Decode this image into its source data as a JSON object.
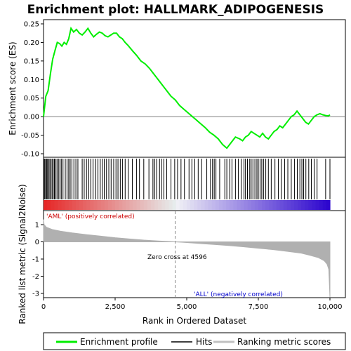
{
  "title": "Enrichment plot: HALLMARK_ADIPOGENESIS",
  "colors": {
    "enrichment": "#00ee00",
    "hits": "#000000",
    "metric_fill": "#b0b0b0",
    "pos_label": "#cc0000",
    "neg_label": "#0000cc",
    "zero_cross_line": "#888888"
  },
  "chart_data": [
    {
      "type": "line",
      "name": "enrichment-profile",
      "ylabel": "Enrichment score (ES)",
      "ylim": [
        -0.1,
        0.25
      ],
      "yticks": [
        "0.25",
        "0.20",
        "0.15",
        "0.10",
        "0.05",
        "0.00",
        "-0.05",
        "-0.10"
      ],
      "ytick_values": [
        0.25,
        0.2,
        0.15,
        0.1,
        0.05,
        0.0,
        -0.05,
        -0.1
      ],
      "xlim": [
        0,
        10100
      ],
      "x": [
        0,
        80,
        160,
        240,
        320,
        400,
        480,
        560,
        640,
        720,
        800,
        880,
        960,
        1050,
        1150,
        1250,
        1350,
        1450,
        1550,
        1650,
        1750,
        1850,
        1950,
        2050,
        2150,
        2250,
        2350,
        2450,
        2550,
        2650,
        2750,
        2850,
        2950,
        3100,
        3250,
        3400,
        3550,
        3700,
        3850,
        4000,
        4150,
        4300,
        4450,
        4600,
        4750,
        4900,
        5050,
        5200,
        5350,
        5500,
        5650,
        5800,
        5950,
        6100,
        6250,
        6400,
        6550,
        6700,
        6850,
        6950,
        7050,
        7150,
        7250,
        7350,
        7450,
        7550,
        7650,
        7750,
        7850,
        7950,
        8050,
        8150,
        8250,
        8350,
        8450,
        8550,
        8650,
        8750,
        8850,
        8950,
        9050,
        9150,
        9250,
        9350,
        9450,
        9550,
        9650,
        9750,
        9850,
        9950,
        10000
      ],
      "y": [
        0.0,
        0.055,
        0.07,
        0.115,
        0.155,
        0.178,
        0.2,
        0.197,
        0.19,
        0.2,
        0.195,
        0.21,
        0.238,
        0.228,
        0.235,
        0.225,
        0.22,
        0.228,
        0.238,
        0.225,
        0.215,
        0.222,
        0.228,
        0.225,
        0.218,
        0.215,
        0.22,
        0.225,
        0.225,
        0.215,
        0.21,
        0.2,
        0.192,
        0.178,
        0.165,
        0.15,
        0.142,
        0.13,
        0.115,
        0.1,
        0.085,
        0.07,
        0.055,
        0.045,
        0.03,
        0.02,
        0.01,
        0.0,
        -0.01,
        -0.02,
        -0.03,
        -0.042,
        -0.05,
        -0.06,
        -0.075,
        -0.085,
        -0.07,
        -0.055,
        -0.06,
        -0.065,
        -0.055,
        -0.05,
        -0.04,
        -0.045,
        -0.05,
        -0.055,
        -0.045,
        -0.055,
        -0.06,
        -0.05,
        -0.04,
        -0.035,
        -0.025,
        -0.03,
        -0.02,
        -0.01,
        0.0,
        0.005,
        0.015,
        0.005,
        -0.005,
        -0.015,
        -0.02,
        -0.01,
        0.0,
        0.005,
        0.008,
        0.005,
        0.003,
        0.002,
        0.005
      ]
    },
    {
      "type": "scatter",
      "name": "hits",
      "x": [
        10,
        40,
        70,
        110,
        140,
        180,
        220,
        260,
        300,
        340,
        380,
        420,
        470,
        520,
        570,
        620,
        680,
        760,
        820,
        880,
        930,
        990,
        1060,
        1130,
        1200,
        1350,
        1420,
        1500,
        1580,
        1650,
        1730,
        1820,
        1900,
        1980,
        2050,
        2120,
        2200,
        2280,
        2360,
        2450,
        2530,
        2600,
        2680,
        2760,
        2850,
        2960,
        3100,
        3250,
        3350,
        3500,
        3680,
        3820,
        3880,
        3950,
        4050,
        4120,
        4200,
        4300,
        4450,
        4580,
        4680,
        4800,
        4920,
        5080,
        5180,
        5280,
        5400,
        5520,
        5700,
        5830,
        5900,
        5960,
        6020,
        6150,
        6330,
        6400,
        6500,
        6580,
        6700,
        6800,
        6900,
        7000,
        7050,
        7120,
        7200,
        7250,
        7310,
        7380,
        7450,
        7500,
        7560,
        7620,
        7680,
        7760,
        7850,
        7950,
        8080,
        8200,
        8300,
        8420,
        8530,
        8650,
        8760,
        8860,
        8950,
        9020,
        9080,
        9160,
        9260,
        9350,
        9450,
        9550,
        9850,
        10000
      ]
    },
    {
      "type": "area",
      "name": "ranked-list-metric",
      "ylabel": "Ranked list metric (Signal2Noise)",
      "xlabel": "Rank in Ordered Dataset",
      "ylim": [
        -3.3,
        1.5
      ],
      "yticks": [
        "1",
        "0",
        "-1",
        "-2",
        "-3"
      ],
      "ytick_values": [
        1,
        0,
        -1,
        -2,
        -3
      ],
      "xticks": [
        "0",
        "2,500",
        "5,000",
        "7,500",
        "10,000"
      ],
      "xtick_values": [
        0,
        2500,
        5000,
        7500,
        10000
      ],
      "x": [
        0,
        20,
        100,
        300,
        600,
        1000,
        1500,
        2000,
        2500,
        3000,
        3500,
        4000,
        4500,
        4596,
        5000,
        5500,
        6000,
        6500,
        7000,
        7500,
        8000,
        8500,
        9000,
        9300,
        9600,
        9800,
        9900,
        9960,
        10000
      ],
      "values": [
        1.3,
        1.0,
        0.85,
        0.72,
        0.62,
        0.52,
        0.42,
        0.33,
        0.24,
        0.17,
        0.1,
        0.05,
        0.01,
        0.0,
        -0.04,
        -0.1,
        -0.16,
        -0.22,
        -0.29,
        -0.37,
        -0.45,
        -0.55,
        -0.66,
        -0.78,
        -0.92,
        -1.1,
        -1.3,
        -1.6,
        -3.2
      ]
    }
  ],
  "annotations": {
    "zero_cross": "Zero cross at 4596",
    "zero_cross_x": 4596,
    "pos_label": "'AML' (positively correlated)",
    "neg_label": "'ALL' (negatively correlated)"
  },
  "legend": {
    "items": [
      {
        "label": "Enrichment profile",
        "color": "#00ee00"
      },
      {
        "label": "Hits",
        "color": "#000000"
      },
      {
        "label": "Ranking metric scores",
        "color": "#c0c0c0"
      }
    ]
  }
}
